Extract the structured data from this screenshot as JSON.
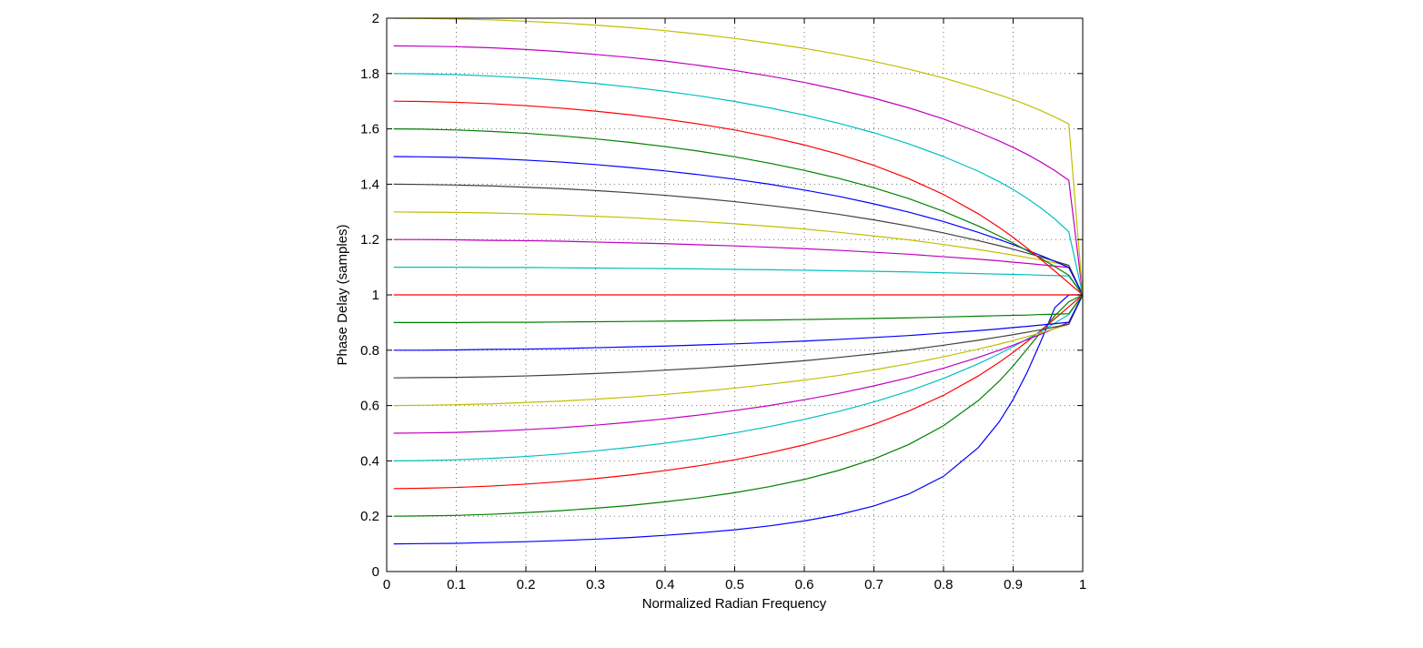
{
  "chart_data": {
    "type": "line",
    "title": "",
    "xlabel": "Normalized Radian Frequency",
    "ylabel": "Phase Delay (samples)",
    "xlim": [
      0,
      1
    ],
    "ylim": [
      0,
      2
    ],
    "grid": true,
    "x_ticks": [
      "0",
      "0.1",
      "0.2",
      "0.3",
      "0.4",
      "0.5",
      "0.6",
      "0.7",
      "0.8",
      "0.9",
      "1"
    ],
    "y_ticks": [
      "0",
      "0.2",
      "0.4",
      "0.6",
      "0.8",
      "1",
      "1.2",
      "1.4",
      "1.6",
      "1.8",
      "2"
    ],
    "x": [
      0.01,
      0.05,
      0.1,
      0.15,
      0.2,
      0.25,
      0.3,
      0.35,
      0.4,
      0.45,
      0.5,
      0.55,
      0.6,
      0.65,
      0.7,
      0.75,
      0.8,
      0.85,
      0.88,
      0.9,
      0.92,
      0.94,
      0.96,
      0.98,
      1.0
    ],
    "series": [
      {
        "color": "#0000ff",
        "values": [
          0.1,
          0.101,
          0.102,
          0.105,
          0.108,
          0.112,
          0.117,
          0.123,
          0.131,
          0.14,
          0.151,
          0.165,
          0.183,
          0.206,
          0.237,
          0.28,
          0.344,
          0.448,
          0.541,
          0.622,
          0.719,
          0.833,
          0.954,
          1.0,
          1.0
        ]
      },
      {
        "color": "#008000",
        "values": [
          0.2,
          0.201,
          0.203,
          0.207,
          0.213,
          0.22,
          0.229,
          0.239,
          0.252,
          0.267,
          0.285,
          0.307,
          0.333,
          0.366,
          0.407,
          0.459,
          0.527,
          0.618,
          0.688,
          0.743,
          0.804,
          0.866,
          0.925,
          0.975,
          1.0
        ]
      },
      {
        "color": "#ff0000",
        "values": [
          0.3,
          0.301,
          0.304,
          0.309,
          0.316,
          0.325,
          0.336,
          0.349,
          0.365,
          0.383,
          0.404,
          0.429,
          0.458,
          0.492,
          0.532,
          0.58,
          0.637,
          0.707,
          0.756,
          0.792,
          0.831,
          0.872,
          0.914,
          0.957,
          1.0
        ]
      },
      {
        "color": "#00bfbf",
        "values": [
          0.4,
          0.401,
          0.404,
          0.409,
          0.416,
          0.425,
          0.436,
          0.449,
          0.464,
          0.481,
          0.501,
          0.524,
          0.55,
          0.579,
          0.613,
          0.652,
          0.698,
          0.751,
          0.787,
          0.813,
          0.84,
          0.868,
          0.898,
          0.929,
          1.0
        ]
      },
      {
        "color": "#bf00bf",
        "values": [
          0.5,
          0.501,
          0.503,
          0.507,
          0.513,
          0.52,
          0.529,
          0.54,
          0.552,
          0.566,
          0.582,
          0.6,
          0.621,
          0.644,
          0.671,
          0.701,
          0.735,
          0.774,
          0.8,
          0.818,
          0.838,
          0.858,
          0.879,
          0.901,
          1.0
        ]
      },
      {
        "color": "#bfbf00",
        "values": [
          0.6,
          0.601,
          0.603,
          0.606,
          0.611,
          0.616,
          0.623,
          0.631,
          0.64,
          0.651,
          0.663,
          0.677,
          0.692,
          0.709,
          0.729,
          0.751,
          0.776,
          0.804,
          0.822,
          0.835,
          0.849,
          0.863,
          0.878,
          0.893,
          1.0
        ]
      },
      {
        "color": "#404040",
        "values": [
          0.7,
          0.701,
          0.702,
          0.704,
          0.707,
          0.711,
          0.716,
          0.721,
          0.728,
          0.735,
          0.743,
          0.752,
          0.762,
          0.774,
          0.787,
          0.801,
          0.818,
          0.836,
          0.848,
          0.856,
          0.865,
          0.874,
          0.884,
          0.894,
          1.0
        ]
      },
      {
        "color": "#0000ff",
        "values": [
          0.8,
          0.8,
          0.801,
          0.803,
          0.804,
          0.806,
          0.809,
          0.812,
          0.815,
          0.819,
          0.823,
          0.828,
          0.833,
          0.839,
          0.846,
          0.853,
          0.862,
          0.871,
          0.877,
          0.882,
          0.886,
          0.891,
          0.896,
          0.901,
          1.0
        ]
      },
      {
        "color": "#008000",
        "values": [
          0.9,
          0.9,
          0.9,
          0.901,
          0.901,
          0.902,
          0.903,
          0.904,
          0.905,
          0.906,
          0.908,
          0.909,
          0.911,
          0.913,
          0.915,
          0.917,
          0.92,
          0.923,
          0.925,
          0.926,
          0.927,
          0.929,
          0.93,
          0.932,
          1.0
        ]
      },
      {
        "color": "#ff0000",
        "values": [
          1.0,
          1.0,
          1.0,
          1.0,
          1.0,
          1.0,
          1.0,
          1.0,
          1.0,
          1.0,
          1.0,
          1.0,
          1.0,
          1.0,
          1.0,
          1.0,
          1.0,
          1.0,
          1.0,
          1.0,
          1.0,
          1.0,
          1.0,
          1.0,
          1.0
        ]
      },
      {
        "color": "#00bfbf",
        "values": [
          1.1,
          1.1,
          1.1,
          1.099,
          1.099,
          1.098,
          1.097,
          1.096,
          1.095,
          1.094,
          1.092,
          1.091,
          1.089,
          1.087,
          1.085,
          1.083,
          1.08,
          1.077,
          1.075,
          1.074,
          1.073,
          1.071,
          1.07,
          1.068,
          1.0
        ]
      },
      {
        "color": "#bf00bf",
        "values": [
          1.2,
          1.2,
          1.199,
          1.197,
          1.196,
          1.194,
          1.191,
          1.188,
          1.185,
          1.181,
          1.177,
          1.172,
          1.167,
          1.161,
          1.154,
          1.147,
          1.138,
          1.129,
          1.123,
          1.118,
          1.114,
          1.109,
          1.104,
          1.099,
          1.0
        ]
      },
      {
        "color": "#bfbf00",
        "values": [
          1.3,
          1.299,
          1.298,
          1.296,
          1.293,
          1.289,
          1.284,
          1.279,
          1.272,
          1.265,
          1.257,
          1.248,
          1.238,
          1.226,
          1.213,
          1.199,
          1.182,
          1.164,
          1.152,
          1.144,
          1.135,
          1.126,
          1.116,
          1.106,
          1.0
        ]
      },
      {
        "color": "#404040",
        "values": [
          1.4,
          1.399,
          1.397,
          1.394,
          1.389,
          1.384,
          1.377,
          1.369,
          1.36,
          1.349,
          1.337,
          1.323,
          1.308,
          1.291,
          1.271,
          1.249,
          1.224,
          1.196,
          1.178,
          1.165,
          1.151,
          1.137,
          1.122,
          1.107,
          1.0
        ]
      },
      {
        "color": "#0000ff",
        "values": [
          1.5,
          1.499,
          1.497,
          1.493,
          1.487,
          1.48,
          1.471,
          1.46,
          1.448,
          1.434,
          1.418,
          1.4,
          1.379,
          1.356,
          1.329,
          1.299,
          1.265,
          1.226,
          1.2,
          1.182,
          1.162,
          1.142,
          1.121,
          1.099,
          1.0
        ]
      },
      {
        "color": "#008000",
        "values": [
          1.6,
          1.599,
          1.596,
          1.591,
          1.584,
          1.575,
          1.564,
          1.551,
          1.536,
          1.519,
          1.499,
          1.476,
          1.45,
          1.421,
          1.387,
          1.348,
          1.302,
          1.249,
          1.213,
          1.187,
          1.16,
          1.132,
          1.102,
          1.071,
          1.0
        ]
      },
      {
        "color": "#ff0000",
        "values": [
          1.7,
          1.699,
          1.696,
          1.691,
          1.684,
          1.675,
          1.664,
          1.651,
          1.635,
          1.617,
          1.596,
          1.571,
          1.542,
          1.508,
          1.468,
          1.42,
          1.363,
          1.293,
          1.244,
          1.208,
          1.169,
          1.128,
          1.086,
          1.043,
          1.0
        ]
      },
      {
        "color": "#00bfbf",
        "values": [
          1.8,
          1.799,
          1.796,
          1.791,
          1.784,
          1.775,
          1.764,
          1.751,
          1.736,
          1.719,
          1.699,
          1.676,
          1.65,
          1.62,
          1.586,
          1.546,
          1.5,
          1.447,
          1.409,
          1.381,
          1.349,
          1.314,
          1.274,
          1.228,
          1.0
        ]
      },
      {
        "color": "#bf00bf",
        "values": [
          1.9,
          1.899,
          1.897,
          1.893,
          1.887,
          1.879,
          1.869,
          1.858,
          1.845,
          1.829,
          1.811,
          1.791,
          1.768,
          1.741,
          1.711,
          1.676,
          1.636,
          1.588,
          1.556,
          1.533,
          1.508,
          1.48,
          1.449,
          1.414,
          1.0
        ]
      },
      {
        "color": "#bfbf00",
        "values": [
          2.0,
          1.999,
          1.997,
          1.994,
          1.989,
          1.983,
          1.975,
          1.966,
          1.955,
          1.942,
          1.927,
          1.91,
          1.891,
          1.869,
          1.844,
          1.816,
          1.784,
          1.747,
          1.723,
          1.706,
          1.687,
          1.666,
          1.643,
          1.618,
          1.0
        ]
      }
    ]
  }
}
